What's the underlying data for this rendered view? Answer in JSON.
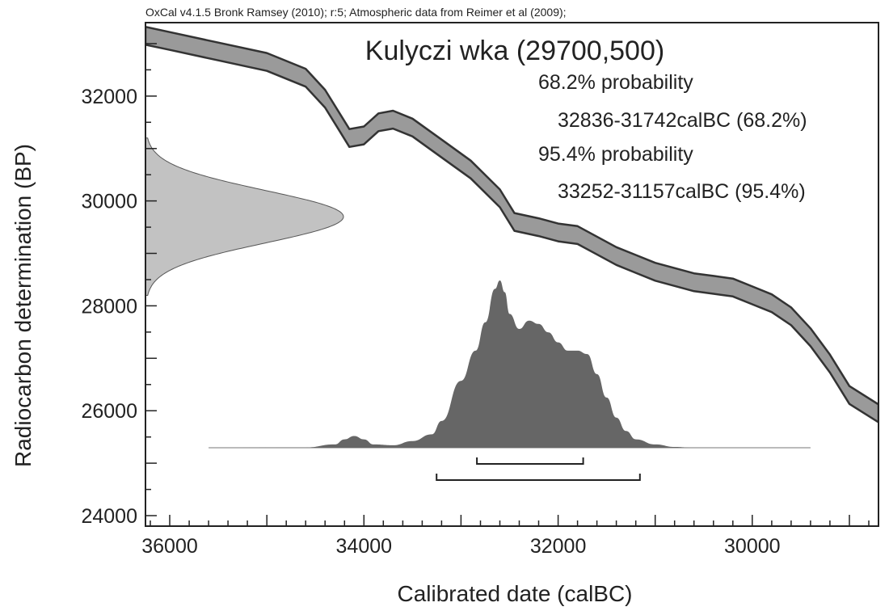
{
  "header": "OxCal v4.1.5 Bronk Ramsey (2010); r:5; Atmospheric data from Reimer et al (2009);",
  "colors": {
    "curve_fill": "#9a9a9a",
    "curve_edge": "#333333",
    "measurement_fill": "#c2c2c2",
    "posterior_fill": "#666666",
    "frame": "#222222"
  },
  "chart_data": {
    "type": "area",
    "title": "Kulyczi wka (29700,500)",
    "xlabel": "Calibrated date (calBC)",
    "ylabel": "Radiocarbon determination (BP)",
    "xlim": [
      36250,
      28700
    ],
    "ylim": [
      23800,
      33400
    ],
    "x_reversed": true,
    "xticks": [
      36000,
      34000,
      32000,
      30000
    ],
    "yticks": [
      24000,
      26000,
      28000,
      30000,
      32000
    ],
    "grid": false,
    "annotations": [
      "68.2% probability",
      "32836-31742calBC (68.2%)",
      "95.4% probability",
      "33252-31157calBC (95.4%)"
    ],
    "ranges": [
      {
        "level": "68.2%",
        "from": 32836,
        "to": 31742
      },
      {
        "level": "95.4%",
        "from": 33252,
        "to": 31157
      }
    ],
    "calibration_curve": {
      "x": [
        36250,
        36000,
        35500,
        35000,
        34600,
        34400,
        34250,
        34150,
        34000,
        33850,
        33700,
        33500,
        33200,
        32900,
        32600,
        32450,
        32200,
        32000,
        31800,
        31600,
        31400,
        31200,
        31000,
        30800,
        30600,
        30400,
        30200,
        30000,
        29800,
        29600,
        29400,
        29200,
        29000,
        28700
      ],
      "y": [
        33150,
        33050,
        32850,
        32650,
        32350,
        31950,
        31500,
        31200,
        31250,
        31500,
        31550,
        31400,
        31000,
        30600,
        30050,
        29600,
        29500,
        29400,
        29350,
        29150,
        28950,
        28800,
        28650,
        28550,
        28450,
        28400,
        28350,
        28200,
        28050,
        27800,
        27400,
        26900,
        26300,
        25950
      ],
      "half_width": 170
    },
    "measurement": {
      "mean_bp": 29700,
      "sigma_bp": 500,
      "from_bp": 28200,
      "to_bp": 31200
    },
    "posterior": {
      "x": [
        35600,
        34600,
        34300,
        34200,
        34100,
        34000,
        33900,
        33700,
        33500,
        33300,
        33200,
        33000,
        32850,
        32750,
        32650,
        32600,
        32550,
        32500,
        32400,
        32300,
        32200,
        32100,
        32000,
        31900,
        31800,
        31700,
        31600,
        31500,
        31400,
        31300,
        31200,
        31000,
        30800,
        30600,
        30400,
        30000,
        29400
      ],
      "p": [
        0,
        0.002,
        0.02,
        0.05,
        0.07,
        0.05,
        0.02,
        0.015,
        0.04,
        0.08,
        0.16,
        0.4,
        0.58,
        0.75,
        0.95,
        1.0,
        0.93,
        0.8,
        0.71,
        0.76,
        0.74,
        0.69,
        0.63,
        0.58,
        0.58,
        0.56,
        0.44,
        0.3,
        0.18,
        0.1,
        0.05,
        0.02,
        0.005,
        0,
        0,
        0,
        0
      ]
    }
  }
}
